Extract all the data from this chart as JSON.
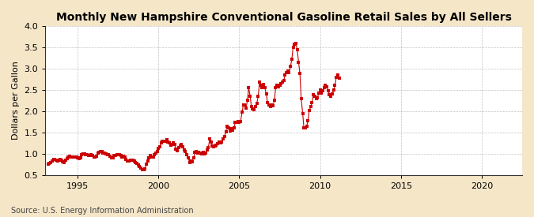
{
  "title": "Monthly New Hampshire Conventional Gasoline Retail Sales by All Sellers",
  "ylabel": "Dollars per Gallon",
  "source": "Source: U.S. Energy Information Administration",
  "background_color": "#f5e6c8",
  "plot_background_color": "#ffffff",
  "marker_color": "#cc0000",
  "line_color": "#cc0000",
  "marker": "s",
  "markersize": 2.5,
  "linewidth": 0.8,
  "xlim": [
    1993.0,
    2022.5
  ],
  "ylim": [
    0.5,
    4.0
  ],
  "yticks": [
    0.5,
    1.0,
    1.5,
    2.0,
    2.5,
    3.0,
    3.5,
    4.0
  ],
  "xticks": [
    1995,
    2000,
    2005,
    2010,
    2015,
    2020
  ],
  "grid_color": "#aaaaaa",
  "title_fontsize": 10,
  "label_fontsize": 8,
  "tick_fontsize": 8,
  "source_fontsize": 7,
  "data": [
    [
      1993.17,
      0.76
    ],
    [
      1993.25,
      0.78
    ],
    [
      1993.33,
      0.8
    ],
    [
      1993.42,
      0.83
    ],
    [
      1993.5,
      0.86
    ],
    [
      1993.58,
      0.87
    ],
    [
      1993.67,
      0.84
    ],
    [
      1993.75,
      0.83
    ],
    [
      1993.83,
      0.84
    ],
    [
      1993.92,
      0.87
    ],
    [
      1994.0,
      0.85
    ],
    [
      1994.08,
      0.81
    ],
    [
      1994.17,
      0.8
    ],
    [
      1994.25,
      0.84
    ],
    [
      1994.33,
      0.88
    ],
    [
      1994.42,
      0.92
    ],
    [
      1994.5,
      0.94
    ],
    [
      1994.58,
      0.93
    ],
    [
      1994.67,
      0.93
    ],
    [
      1994.75,
      0.92
    ],
    [
      1994.83,
      0.93
    ],
    [
      1994.92,
      0.93
    ],
    [
      1995.0,
      0.91
    ],
    [
      1995.08,
      0.88
    ],
    [
      1995.17,
      0.9
    ],
    [
      1995.25,
      0.97
    ],
    [
      1995.33,
      1.0
    ],
    [
      1995.42,
      1.0
    ],
    [
      1995.5,
      0.98
    ],
    [
      1995.58,
      0.97
    ],
    [
      1995.67,
      0.96
    ],
    [
      1995.75,
      0.96
    ],
    [
      1995.83,
      0.97
    ],
    [
      1995.92,
      0.96
    ],
    [
      1996.0,
      0.93
    ],
    [
      1996.08,
      0.92
    ],
    [
      1996.17,
      0.94
    ],
    [
      1996.25,
      1.01
    ],
    [
      1996.33,
      1.03
    ],
    [
      1996.42,
      1.06
    ],
    [
      1996.5,
      1.05
    ],
    [
      1996.58,
      1.02
    ],
    [
      1996.67,
      1.01
    ],
    [
      1996.75,
      0.99
    ],
    [
      1996.83,
      0.98
    ],
    [
      1996.92,
      0.97
    ],
    [
      1997.0,
      0.94
    ],
    [
      1997.08,
      0.91
    ],
    [
      1997.17,
      0.9
    ],
    [
      1997.25,
      0.95
    ],
    [
      1997.33,
      0.96
    ],
    [
      1997.42,
      0.98
    ],
    [
      1997.5,
      0.97
    ],
    [
      1997.58,
      0.97
    ],
    [
      1997.67,
      0.95
    ],
    [
      1997.75,
      0.93
    ],
    [
      1997.83,
      0.94
    ],
    [
      1997.92,
      0.93
    ],
    [
      1998.0,
      0.87
    ],
    [
      1998.08,
      0.82
    ],
    [
      1998.17,
      0.82
    ],
    [
      1998.25,
      0.84
    ],
    [
      1998.33,
      0.85
    ],
    [
      1998.42,
      0.85
    ],
    [
      1998.5,
      0.83
    ],
    [
      1998.58,
      0.8
    ],
    [
      1998.67,
      0.77
    ],
    [
      1998.75,
      0.73
    ],
    [
      1998.83,
      0.7
    ],
    [
      1998.92,
      0.67
    ],
    [
      1999.0,
      0.63
    ],
    [
      1999.08,
      0.62
    ],
    [
      1999.17,
      0.65
    ],
    [
      1999.25,
      0.75
    ],
    [
      1999.33,
      0.83
    ],
    [
      1999.42,
      0.9
    ],
    [
      1999.5,
      0.95
    ],
    [
      1999.58,
      0.93
    ],
    [
      1999.67,
      0.93
    ],
    [
      1999.75,
      0.97
    ],
    [
      1999.83,
      1.01
    ],
    [
      1999.92,
      1.06
    ],
    [
      2000.0,
      1.12
    ],
    [
      2000.08,
      1.17
    ],
    [
      2000.17,
      1.25
    ],
    [
      2000.25,
      1.3
    ],
    [
      2000.33,
      1.3
    ],
    [
      2000.42,
      1.3
    ],
    [
      2000.5,
      1.32
    ],
    [
      2000.58,
      1.28
    ],
    [
      2000.67,
      1.25
    ],
    [
      2000.75,
      1.2
    ],
    [
      2000.83,
      1.22
    ],
    [
      2000.92,
      1.26
    ],
    [
      2001.0,
      1.22
    ],
    [
      2001.08,
      1.1
    ],
    [
      2001.17,
      1.07
    ],
    [
      2001.25,
      1.14
    ],
    [
      2001.33,
      1.19
    ],
    [
      2001.42,
      1.22
    ],
    [
      2001.5,
      1.16
    ],
    [
      2001.58,
      1.09
    ],
    [
      2001.67,
      1.05
    ],
    [
      2001.75,
      0.97
    ],
    [
      2001.83,
      0.91
    ],
    [
      2001.92,
      0.8
    ],
    [
      2002.0,
      0.82
    ],
    [
      2002.08,
      0.81
    ],
    [
      2002.17,
      0.9
    ],
    [
      2002.25,
      1.03
    ],
    [
      2002.33,
      1.05
    ],
    [
      2002.42,
      1.02
    ],
    [
      2002.5,
      1.03
    ],
    [
      2002.58,
      1.02
    ],
    [
      2002.67,
      0.99
    ],
    [
      2002.75,
      1.03
    ],
    [
      2002.83,
      1.0
    ],
    [
      2002.92,
      1.01
    ],
    [
      2003.0,
      1.09
    ],
    [
      2003.08,
      1.14
    ],
    [
      2003.17,
      1.34
    ],
    [
      2003.25,
      1.27
    ],
    [
      2003.33,
      1.19
    ],
    [
      2003.42,
      1.17
    ],
    [
      2003.5,
      1.18
    ],
    [
      2003.58,
      1.2
    ],
    [
      2003.67,
      1.24
    ],
    [
      2003.75,
      1.27
    ],
    [
      2003.83,
      1.25
    ],
    [
      2003.92,
      1.27
    ],
    [
      2004.0,
      1.35
    ],
    [
      2004.08,
      1.4
    ],
    [
      2004.17,
      1.52
    ],
    [
      2004.25,
      1.65
    ],
    [
      2004.33,
      1.61
    ],
    [
      2004.42,
      1.54
    ],
    [
      2004.5,
      1.58
    ],
    [
      2004.58,
      1.56
    ],
    [
      2004.67,
      1.61
    ],
    [
      2004.75,
      1.73
    ],
    [
      2004.83,
      1.74
    ],
    [
      2004.92,
      1.75
    ],
    [
      2005.0,
      1.73
    ],
    [
      2005.08,
      1.76
    ],
    [
      2005.17,
      1.97
    ],
    [
      2005.25,
      2.15
    ],
    [
      2005.33,
      2.15
    ],
    [
      2005.42,
      2.08
    ],
    [
      2005.5,
      2.25
    ],
    [
      2005.58,
      2.55
    ],
    [
      2005.67,
      2.35
    ],
    [
      2005.75,
      2.1
    ],
    [
      2005.83,
      2.05
    ],
    [
      2005.92,
      2.03
    ],
    [
      2006.0,
      2.1
    ],
    [
      2006.08,
      2.18
    ],
    [
      2006.17,
      2.35
    ],
    [
      2006.25,
      2.68
    ],
    [
      2006.33,
      2.6
    ],
    [
      2006.42,
      2.55
    ],
    [
      2006.5,
      2.62
    ],
    [
      2006.58,
      2.55
    ],
    [
      2006.67,
      2.4
    ],
    [
      2006.75,
      2.2
    ],
    [
      2006.83,
      2.15
    ],
    [
      2006.92,
      2.1
    ],
    [
      2007.0,
      2.15
    ],
    [
      2007.08,
      2.12
    ],
    [
      2007.17,
      2.25
    ],
    [
      2007.25,
      2.55
    ],
    [
      2007.33,
      2.6
    ],
    [
      2007.42,
      2.58
    ],
    [
      2007.5,
      2.6
    ],
    [
      2007.58,
      2.65
    ],
    [
      2007.67,
      2.68
    ],
    [
      2007.75,
      2.72
    ],
    [
      2007.83,
      2.85
    ],
    [
      2007.92,
      2.9
    ],
    [
      2008.0,
      2.95
    ],
    [
      2008.08,
      2.9
    ],
    [
      2008.17,
      3.05
    ],
    [
      2008.25,
      3.22
    ],
    [
      2008.33,
      3.5
    ],
    [
      2008.42,
      3.58
    ],
    [
      2008.5,
      3.6
    ],
    [
      2008.58,
      3.45
    ],
    [
      2008.67,
      3.15
    ],
    [
      2008.75,
      2.88
    ],
    [
      2008.83,
      2.3
    ],
    [
      2008.92,
      1.95
    ],
    [
      2009.0,
      1.6
    ],
    [
      2009.08,
      1.6
    ],
    [
      2009.17,
      1.65
    ],
    [
      2009.25,
      1.78
    ],
    [
      2009.33,
      2.02
    ],
    [
      2009.42,
      2.1
    ],
    [
      2009.5,
      2.2
    ],
    [
      2009.58,
      2.38
    ],
    [
      2009.67,
      2.35
    ],
    [
      2009.75,
      2.3
    ],
    [
      2009.83,
      2.32
    ],
    [
      2009.92,
      2.42
    ],
    [
      2010.0,
      2.5
    ],
    [
      2010.08,
      2.42
    ],
    [
      2010.17,
      2.48
    ],
    [
      2010.25,
      2.55
    ],
    [
      2010.33,
      2.6
    ],
    [
      2010.42,
      2.58
    ],
    [
      2010.5,
      2.48
    ],
    [
      2010.58,
      2.38
    ],
    [
      2010.67,
      2.35
    ],
    [
      2010.75,
      2.4
    ],
    [
      2010.83,
      2.5
    ],
    [
      2010.92,
      2.6
    ],
    [
      2011.0,
      2.8
    ],
    [
      2011.08,
      2.85
    ],
    [
      2011.17,
      2.78
    ]
  ]
}
